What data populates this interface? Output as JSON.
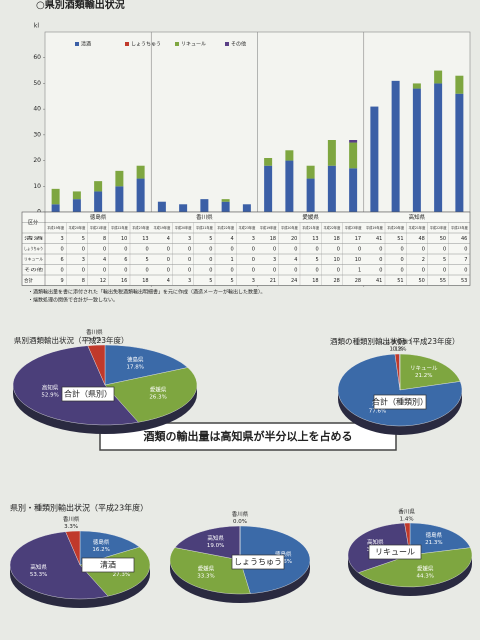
{
  "page_title": "○県別酒類輸出状況",
  "notes": [
    "・酒類輸出量を書に添付された「輸出免税酒類輸出明細書」を元に作成（酒造メーカーが輸出した数量）。",
    "・端数処理の関係で合計が一致しない。"
  ],
  "banner": "酒類の輸出量は高知県が半分以上を占める",
  "section_title": "県別・種類別輸出状況（平成23年度）",
  "chart_data": [
    {
      "type": "bar",
      "stacked": true,
      "y_label": "kl",
      "ylim": [
        0,
        70
      ],
      "yticks": [
        0,
        10,
        20,
        30,
        40,
        50,
        60
      ],
      "grid": false,
      "groups": [
        "徳島県",
        "香川県",
        "愛媛県",
        "高知県"
      ],
      "categories": [
        "平成19年度",
        "平成20年度",
        "平成21年度",
        "平成22年度",
        "平成23年度",
        "平成19年度",
        "平成20年度",
        "平成21年度",
        "平成22年度",
        "平成23年度",
        "平成19年度",
        "平成20年度",
        "平成21年度",
        "平成22年度",
        "平成23年度",
        "平成19年度",
        "平成20年度",
        "平成21年度",
        "平成22年度",
        "平成23年度"
      ],
      "series": [
        {
          "name": "清酒",
          "color": "#3b5fa6",
          "values": [
            3,
            5,
            8,
            10,
            13,
            4,
            3,
            5,
            4,
            3,
            18,
            20,
            13,
            18,
            17,
            41,
            51,
            48,
            50,
            46
          ]
        },
        {
          "name": "しょうちゅう",
          "color": "#c0392b",
          "values": [
            0,
            0,
            0,
            0,
            0,
            0,
            0,
            0,
            0,
            0,
            0,
            0,
            0,
            0,
            0,
            0,
            0,
            0,
            0,
            0
          ]
        },
        {
          "name": "リキュール",
          "color": "#7ea640",
          "values": [
            6,
            3,
            4,
            6,
            5,
            0,
            0,
            0,
            1,
            0,
            3,
            4,
            5,
            10,
            10,
            0,
            0,
            2,
            5,
            7
          ]
        },
        {
          "name": "その他",
          "color": "#5a3f86",
          "values": [
            0,
            0,
            0,
            0,
            0,
            0,
            0,
            0,
            0,
            0,
            0,
            0,
            0,
            0,
            1,
            0,
            0,
            0,
            0,
            0
          ]
        }
      ],
      "table": {
        "header": "区分",
        "total_label": "合計",
        "totals": [
          9,
          8,
          12,
          16,
          18,
          4,
          3,
          5,
          5,
          3,
          21,
          24,
          18,
          28,
          28,
          41,
          51,
          50,
          55,
          53
        ]
      }
    },
    {
      "type": "pie",
      "title": "県別酒類輸出状況（平成23年度）",
      "center_label": "合計（県別）",
      "categories": [
        "徳島県",
        "愛媛県",
        "高知県",
        "香川県"
      ],
      "values": [
        17.8,
        26.3,
        52.9,
        3.0
      ],
      "value_labels": [
        "17.8%",
        "26.3%",
        "52.9%",
        "3.0%"
      ],
      "colors": [
        "#3b6aa8",
        "#7ea640",
        "#4b3f7a",
        "#c0392b"
      ]
    },
    {
      "type": "pie",
      "title": "酒類の種類別輸出状況（平成23年度）",
      "center_label": "合計（種類別）",
      "categories": [
        "リキュール",
        "清酒",
        "しょうちゅう",
        "その他"
      ],
      "values": [
        21.2,
        77.6,
        1.1,
        0.2
      ],
      "value_labels": [
        "21.2%",
        "77.6%",
        "1.1%",
        "0.2%"
      ],
      "colors": [
        "#7ea640",
        "#3b6aa8",
        "#c0392b",
        "#5a3f86"
      ]
    },
    {
      "type": "pie",
      "center_label": "清酒",
      "categories": [
        "徳島県",
        "愛媛県",
        "高知県",
        "香川県"
      ],
      "values": [
        16.2,
        27.3,
        53.3,
        3.3
      ],
      "value_labels": [
        "16.2%",
        "27.3%",
        "53.3%",
        "3.3%"
      ],
      "colors": [
        "#3b6aa8",
        "#7ea640",
        "#4b3f7a",
        "#c0392b"
      ]
    },
    {
      "type": "pie",
      "center_label": "しょうちゅう",
      "categories": [
        "徳島県",
        "愛媛県",
        "高知県",
        "香川県"
      ],
      "values": [
        47.6,
        33.3,
        19.0,
        0.0
      ],
      "value_labels": [
        "47.6%",
        "33.3%",
        "19.0%",
        "0.0%"
      ],
      "colors": [
        "#3b6aa8",
        "#7ea640",
        "#4b3f7a",
        "#c0392b"
      ]
    },
    {
      "type": "pie",
      "center_label": "リキュール",
      "categories": [
        "徳島県",
        "愛媛県",
        "高知県",
        "香川県"
      ],
      "values": [
        21.3,
        44.3,
        32.9,
        1.4
      ],
      "value_labels": [
        "21.3%",
        "44.3%",
        "32.9%",
        "1.4%"
      ],
      "colors": [
        "#3b6aa8",
        "#7ea640",
        "#4b3f7a",
        "#c0392b"
      ]
    }
  ]
}
